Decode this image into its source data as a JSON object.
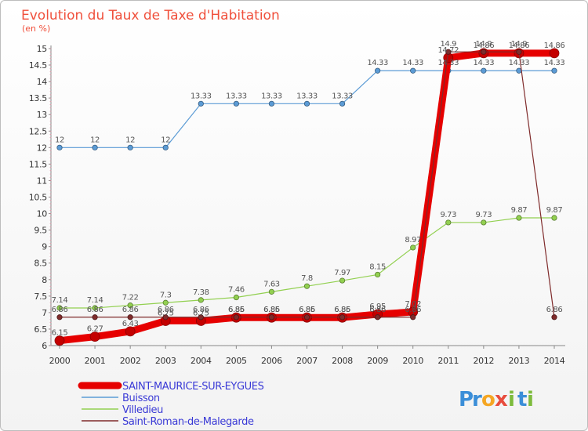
{
  "chart_data": {
    "type": "line",
    "title": "Evolution du Taux de Taxe d'Habitation",
    "unit_label": "(en %)",
    "x": [
      2000,
      2001,
      2002,
      2003,
      2004,
      2005,
      2006,
      2007,
      2008,
      2009,
      2010,
      2011,
      2012,
      2013,
      2014
    ],
    "ylim": [
      6,
      15
    ],
    "y_ticks": [
      "6",
      "6.5",
      "7",
      "7.5",
      "8",
      "8.5",
      "9",
      "9.5",
      "10",
      "10.5",
      "11",
      "11.5",
      "12",
      "12.5",
      "13",
      "13.5",
      "14",
      "14.5",
      "15"
    ],
    "grid": false,
    "legend_position": "bottom-left",
    "series": [
      {
        "name": "SAINT-MAURICE-SUR-EYGUES",
        "color": "#e60000",
        "values": [
          6.15,
          6.27,
          6.43,
          6.75,
          6.75,
          6.85,
          6.85,
          6.85,
          6.85,
          6.95,
          7.02,
          14.72,
          14.86,
          14.86,
          14.86
        ],
        "labels": [
          "6.15",
          "6.27",
          "6.43",
          "6.75",
          "6.75",
          "6.85",
          "6.85",
          "6.85",
          "6.85",
          "6.95",
          "7.02",
          "14.72",
          "14.86",
          "14.86",
          "14.86"
        ]
      },
      {
        "name": "Buisson",
        "color": "#5b9bd5",
        "values": [
          12,
          12,
          12,
          12,
          13.33,
          13.33,
          13.33,
          13.33,
          13.33,
          14.33,
          14.33,
          14.33,
          14.33,
          14.33,
          14.33
        ],
        "labels": [
          "12",
          "12",
          "12",
          "12",
          "13.33",
          "13.33",
          "13.33",
          "13.33",
          "13.33",
          "14.33",
          "14.33",
          "14.33",
          "14.33",
          "14.33",
          "14.33"
        ]
      },
      {
        "name": "Villedieu",
        "color": "#92d050",
        "values": [
          7.14,
          7.14,
          7.22,
          7.3,
          7.38,
          7.46,
          7.63,
          7.8,
          7.97,
          8.15,
          8.97,
          9.73,
          9.73,
          9.87,
          9.87
        ],
        "labels": [
          "7.14",
          "7.14",
          "7.22",
          "7.3",
          "7.38",
          "7.46",
          "7.63",
          "7.8",
          "7.97",
          "8.15",
          "8.97",
          "9.73",
          "9.73",
          "9.87",
          "9.87"
        ]
      },
      {
        "name": "Saint-Roman-de-Malegarde",
        "color": "#7f2b2b",
        "values": [
          6.86,
          6.86,
          6.86,
          6.86,
          6.86,
          6.86,
          6.86,
          6.86,
          6.86,
          6.86,
          6.86,
          14.9,
          14.9,
          14.9,
          6.86
        ],
        "labels": [
          "6.86",
          "6.86",
          "6.86",
          "6.86",
          "6.86",
          "6.86",
          "6.86",
          "6.86",
          "6.86",
          "6.86",
          "6.86",
          "14.9",
          "14.9",
          "14.9",
          "6.86"
        ]
      }
    ]
  },
  "logo": {
    "letters": [
      "P",
      "r",
      "o",
      "x",
      "i",
      "t",
      "i"
    ],
    "colors": [
      "#3b8ed8",
      "#3b8ed8",
      "#f5a623",
      "#e84c3d",
      "#7dbb3c",
      "#3b8ed8",
      "#7dbb3c"
    ]
  }
}
